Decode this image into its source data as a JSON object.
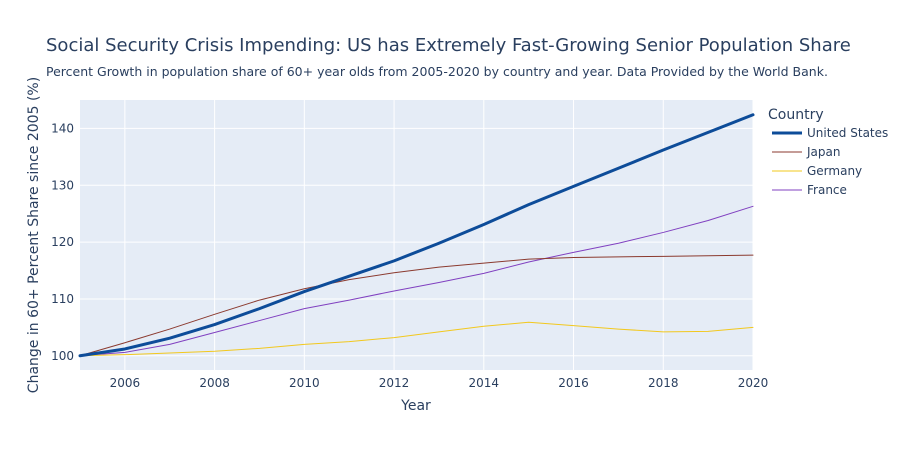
{
  "chart_data": {
    "type": "line",
    "title": "Social Security Crisis Impending: US has Extremely Fast-Growing Senior Population Share",
    "subtitle": "Percent Growth in population share of 60+ year olds from 2005-2020 by country and year. Data Provided by the World Bank.",
    "xlabel": "Year",
    "ylabel": "Change in 60+ Percent Share since 2005 (%)",
    "xlim": [
      2005,
      2020
    ],
    "ylim": [
      97.5,
      145
    ],
    "x_ticks": [
      2006,
      2008,
      2010,
      2012,
      2014,
      2016,
      2018,
      2020
    ],
    "y_ticks": [
      100,
      110,
      120,
      130,
      140
    ],
    "grid": true,
    "legend_title": "Country",
    "legend_position": "right",
    "plot_background": "#e5ecf6",
    "x": [
      2005,
      2006,
      2007,
      2008,
      2009,
      2010,
      2011,
      2012,
      2013,
      2014,
      2015,
      2016,
      2017,
      2018,
      2019,
      2020
    ],
    "series": [
      {
        "name": "United States",
        "color": "#0d4c99",
        "width": 3,
        "values": [
          100,
          101.2,
          103.1,
          105.5,
          108.3,
          111.3,
          114.0,
          116.7,
          119.8,
          123.1,
          126.6,
          129.8,
          133.0,
          136.2,
          139.3,
          142.4
        ]
      },
      {
        "name": "Japan",
        "color": "#8b3a2f",
        "width": 1,
        "values": [
          100,
          102.3,
          104.7,
          107.3,
          109.8,
          111.8,
          113.4,
          114.6,
          115.6,
          116.3,
          117.0,
          117.3,
          117.4,
          117.5,
          117.6,
          117.7
        ]
      },
      {
        "name": "Germany",
        "color": "#f2c81e",
        "width": 1,
        "values": [
          100,
          100.2,
          100.5,
          100.8,
          101.3,
          102.0,
          102.5,
          103.2,
          104.2,
          105.2,
          105.9,
          105.3,
          104.7,
          104.2,
          104.3,
          105.0
        ]
      },
      {
        "name": "France",
        "color": "#8040c0",
        "width": 1,
        "values": [
          100,
          100.6,
          102.0,
          104.1,
          106.2,
          108.3,
          109.8,
          111.4,
          112.9,
          114.5,
          116.5,
          118.2,
          119.8,
          121.7,
          123.8,
          126.3
        ]
      }
    ]
  }
}
